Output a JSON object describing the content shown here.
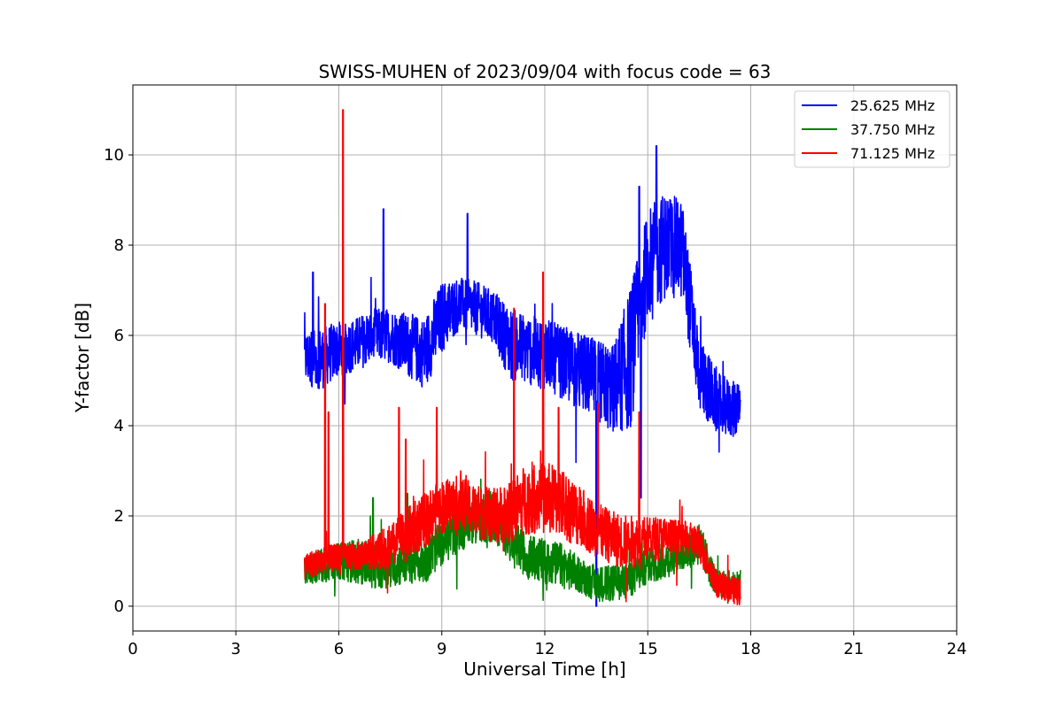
{
  "chart_data": {
    "type": "line",
    "title": "SWISS-MUHEN of 2023/09/04 with focus code = 63",
    "xlabel": "Universal Time [h]",
    "ylabel": "Y-factor [dB]",
    "xlim": [
      0,
      24
    ],
    "ylim": [
      -0.55,
      11.55
    ],
    "xticks": [
      "0",
      "3",
      "6",
      "9",
      "12",
      "15",
      "18",
      "21",
      "24"
    ],
    "yticks": [
      "0",
      "2",
      "4",
      "6",
      "8",
      "10"
    ],
    "grid": true,
    "legend_position": "top-right",
    "series": [
      {
        "name": "25.625 MHz",
        "color": "#0000ff",
        "x": [
          5.0,
          5.5,
          6.0,
          6.5,
          7.0,
          7.5,
          8.0,
          8.5,
          9.0,
          9.5,
          10.0,
          10.5,
          11.0,
          11.5,
          12.0,
          12.5,
          13.0,
          13.5,
          14.0,
          14.5,
          15.0,
          15.5,
          16.0,
          16.5,
          17.0,
          17.7
        ],
        "y": [
          5.5,
          5.5,
          5.7,
          5.8,
          6.0,
          6.0,
          5.8,
          5.6,
          6.4,
          6.7,
          6.6,
          6.4,
          5.8,
          5.7,
          5.6,
          5.4,
          5.2,
          5.0,
          4.8,
          5.5,
          7.6,
          8.0,
          7.9,
          5.2,
          4.5,
          4.3
        ],
        "spread": [
          0.6,
          0.7,
          0.6,
          0.6,
          0.6,
          0.6,
          0.7,
          0.8,
          0.8,
          0.6,
          0.6,
          0.6,
          0.8,
          0.8,
          0.8,
          0.8,
          0.9,
          0.9,
          1.0,
          1.6,
          1.2,
          1.2,
          1.1,
          0.9,
          0.7,
          0.6
        ],
        "spikes": [
          [
            5.25,
            7.4
          ],
          [
            7.3,
            8.8
          ],
          [
            9.75,
            8.7
          ],
          [
            15.25,
            10.2
          ],
          [
            13.5,
            0.0
          ],
          [
            14.8,
            2.4
          ],
          [
            14.75,
            9.3
          ]
        ]
      },
      {
        "name": "37.750 MHz",
        "color": "#008000",
        "x": [
          5.0,
          5.5,
          6.0,
          6.5,
          7.0,
          7.5,
          8.0,
          8.5,
          9.0,
          9.5,
          10.0,
          10.5,
          11.0,
          11.5,
          12.0,
          12.5,
          13.0,
          13.5,
          14.0,
          14.5,
          15.0,
          15.5,
          16.0,
          16.5,
          17.0,
          17.7
        ],
        "y": [
          0.8,
          0.9,
          1.0,
          1.0,
          0.9,
          0.9,
          1.0,
          1.0,
          1.4,
          1.8,
          2.0,
          2.0,
          1.5,
          1.1,
          1.0,
          0.9,
          0.7,
          0.5,
          0.5,
          0.6,
          0.9,
          1.0,
          1.2,
          1.4,
          0.5,
          0.5
        ],
        "spread": [
          0.3,
          0.4,
          0.4,
          0.5,
          0.5,
          0.5,
          0.5,
          0.5,
          0.5,
          0.6,
          0.6,
          0.6,
          0.5,
          0.5,
          0.5,
          0.5,
          0.4,
          0.4,
          0.4,
          0.4,
          0.4,
          0.4,
          0.4,
          0.5,
          0.3,
          0.3
        ],
        "spikes": [
          [
            7.0,
            2.4
          ],
          [
            8.0,
            2.5
          ]
        ]
      },
      {
        "name": "71.125 MHz",
        "color": "#ff0000",
        "x": [
          5.0,
          5.5,
          6.0,
          6.5,
          7.0,
          7.5,
          8.0,
          8.5,
          9.0,
          9.5,
          10.0,
          10.5,
          11.0,
          11.5,
          12.0,
          12.5,
          13.0,
          13.5,
          14.0,
          14.5,
          15.0,
          15.5,
          16.0,
          16.5,
          17.0,
          17.7
        ],
        "y": [
          0.9,
          1.0,
          1.1,
          1.1,
          1.2,
          1.3,
          1.6,
          1.9,
          2.2,
          2.3,
          2.1,
          2.0,
          2.1,
          2.4,
          2.4,
          2.3,
          2.0,
          1.7,
          1.5,
          1.4,
          1.5,
          1.5,
          1.5,
          1.4,
          0.5,
          0.3
        ],
        "spread": [
          0.3,
          0.3,
          0.3,
          0.3,
          0.4,
          0.5,
          0.6,
          0.6,
          0.6,
          0.6,
          0.6,
          0.6,
          0.7,
          0.8,
          0.8,
          0.8,
          0.7,
          0.6,
          0.6,
          0.6,
          0.5,
          0.5,
          0.4,
          0.4,
          0.3,
          0.3
        ],
        "spikes": [
          [
            5.6,
            6.7
          ],
          [
            5.7,
            4.3
          ],
          [
            6.12,
            11.0
          ],
          [
            7.75,
            4.4
          ],
          [
            7.95,
            3.7
          ],
          [
            8.85,
            4.4
          ],
          [
            11.1,
            6.6
          ],
          [
            11.95,
            7.4
          ],
          [
            12.4,
            4.4
          ],
          [
            13.55,
            4.5
          ],
          [
            14.75,
            4.3
          ]
        ]
      }
    ]
  }
}
